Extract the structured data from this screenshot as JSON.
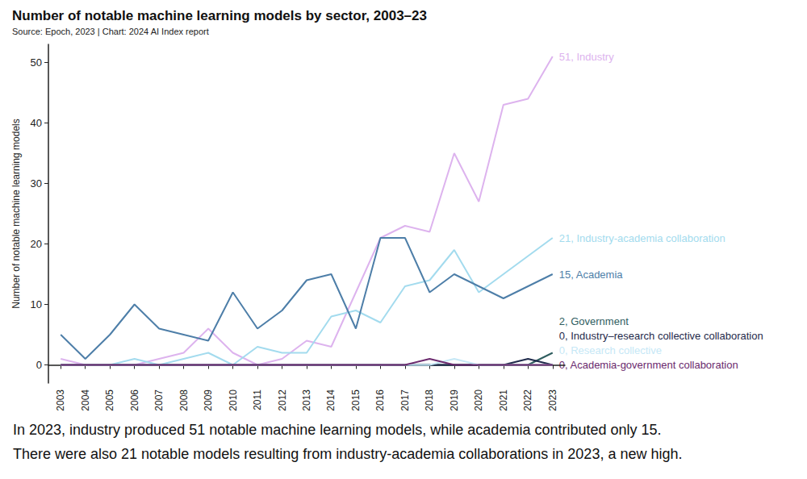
{
  "chart_data": {
    "type": "line",
    "title": "Number of notable machine learning models by sector, 2003–23",
    "subtitle": "Source: Epoch, 2023 | Chart: 2024 AI Index report",
    "y_label": "Number of notable machine learning models",
    "caption": [
      "In 2023, industry produced 51 notable machine learning models, while academia contributed only 15.",
      "There were also 21 notable models resulting from industry-academia collaborations in 2023, a new high."
    ],
    "categories": [
      "2003",
      "2004",
      "2005",
      "2006",
      "2007",
      "2008",
      "2009",
      "2010",
      "2011",
      "2012",
      "2013",
      "2014",
      "2015",
      "2016",
      "2017",
      "2018",
      "2019",
      "2020",
      "2021",
      "2022",
      "2023"
    ],
    "ylim": [
      -3,
      53
    ],
    "yticks": [
      0,
      10,
      20,
      30,
      40,
      50
    ],
    "grid": false,
    "marker": "none",
    "series": [
      {
        "name": "Industry",
        "label": "51, Industry",
        "color": "#ddb3ee",
        "values": [
          1,
          0,
          0,
          0,
          1,
          2,
          6,
          2,
          0,
          1,
          4,
          3,
          12,
          21,
          23,
          22,
          35,
          27,
          43,
          44,
          51
        ]
      },
      {
        "name": "Industry-academia collaboration",
        "label": "21, Industry-academia collaboration",
        "color": "#a3dbee",
        "values": [
          0,
          0,
          0,
          1,
          0,
          1,
          2,
          0,
          3,
          2,
          2,
          8,
          9,
          7,
          13,
          14,
          19,
          12,
          15,
          18,
          21
        ]
      },
      {
        "name": "Academia",
        "label": "15, Academia",
        "color": "#4d7ea8",
        "values": [
          5,
          1,
          5,
          10,
          6,
          5,
          4,
          12,
          6,
          9,
          14,
          15,
          6,
          21,
          21,
          12,
          15,
          13,
          11,
          13,
          15
        ]
      },
      {
        "name": "Government",
        "label": "2, Government",
        "color": "#2f5d5f",
        "values": [
          0,
          0,
          0,
          0,
          0,
          0,
          0,
          0,
          0,
          0,
          0,
          0,
          0,
          0,
          0,
          0,
          0,
          0,
          0,
          0,
          2
        ]
      },
      {
        "name": "Industry–research collective collaboration",
        "label": "0, Industry–research collective collaboration",
        "color": "#1f2a4b",
        "values": [
          0,
          0,
          0,
          0,
          0,
          0,
          0,
          0,
          0,
          0,
          0,
          0,
          0,
          0,
          0,
          0,
          0,
          0,
          0,
          1,
          0
        ]
      },
      {
        "name": "Research collective",
        "label": "0, Research collective",
        "color": "#c6e8f6",
        "values": [
          0,
          0,
          0,
          0,
          0,
          0,
          0,
          0,
          0,
          0,
          0,
          0,
          0,
          0,
          0,
          0,
          1,
          0,
          0,
          0,
          0
        ]
      },
      {
        "name": "Academia-government collaboration",
        "label": "0, Academia-government collaboration",
        "color": "#6b2a6e",
        "values": [
          0,
          0,
          0,
          0,
          0,
          0,
          0,
          0,
          0,
          0,
          0,
          0,
          0,
          0,
          0,
          1,
          0,
          0,
          0,
          0,
          0
        ]
      }
    ]
  }
}
